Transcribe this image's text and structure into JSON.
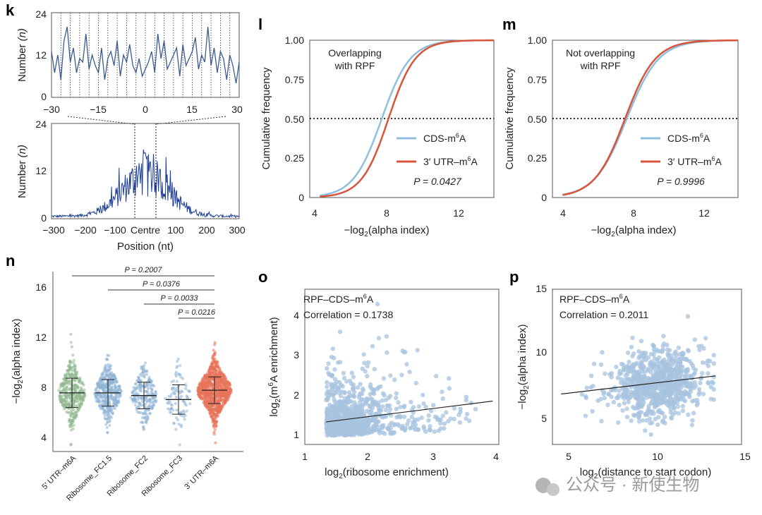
{
  "panels": {
    "k": {
      "label": "k"
    },
    "l": {
      "label": "l"
    },
    "m": {
      "label": "m"
    },
    "n": {
      "label": "n"
    },
    "o": {
      "label": "o"
    },
    "p": {
      "label": "p"
    }
  },
  "watermark": "公众号 · 新使生物",
  "chart_data": [
    {
      "panel": "k-top",
      "type": "line",
      "ylabel_main": "Number",
      "ylabel_unit": "(n)",
      "xlim": [
        -30,
        30
      ],
      "ylim": [
        0,
        24
      ],
      "xticks": [
        "−30",
        "−15",
        "0",
        "15",
        "30"
      ],
      "yticks": [
        "0",
        "12",
        "24"
      ],
      "color": "#3b5a8f",
      "x": [
        -30,
        -29,
        -28,
        -27,
        -26,
        -25,
        -24,
        -23,
        -22,
        -21,
        -20,
        -19,
        -18,
        -17,
        -16,
        -15,
        -14,
        -13,
        -12,
        -11,
        -10,
        -9,
        -8,
        -7,
        -6,
        -5,
        -4,
        -3,
        -2,
        -1,
        0,
        1,
        2,
        3,
        4,
        5,
        6,
        7,
        8,
        9,
        10,
        11,
        12,
        13,
        14,
        15,
        16,
        17,
        18,
        19,
        20,
        21,
        22,
        23,
        24,
        25,
        26,
        27,
        28,
        29,
        30
      ],
      "values": [
        13,
        7,
        12,
        5,
        16,
        20,
        10,
        14,
        7,
        11,
        10,
        18,
        8,
        12,
        9,
        7,
        14,
        5,
        11,
        13,
        9,
        16,
        6,
        12,
        10,
        15,
        9,
        7,
        11,
        6,
        8,
        10,
        13,
        7,
        18,
        11,
        16,
        8,
        10,
        12,
        14,
        6,
        15,
        9,
        11,
        13,
        17,
        8,
        12,
        10,
        20,
        9,
        14,
        7,
        13,
        11,
        5,
        12,
        9,
        4,
        10
      ]
    },
    {
      "panel": "k-bottom",
      "type": "line",
      "xlabel": "Position (nt)",
      "ylabel_main": "Number",
      "ylabel_unit": "(n)",
      "xlim": [
        -300,
        300
      ],
      "ylim": [
        0,
        24
      ],
      "xticks": [
        "−300",
        "−200",
        "−100",
        "Centre",
        "100",
        "200",
        "300"
      ],
      "yticks": [
        "0",
        "12",
        "24"
      ],
      "color": "#1f3f94",
      "x_step": 2,
      "peak_y": 19,
      "peak_x": 0
    },
    {
      "panel": "l",
      "type": "line",
      "xlabel_main": "−log",
      "xlabel_sub": "2",
      "xlabel_rest": "(alpha index)",
      "ylabel": "Cumulative frequency",
      "xlim": [
        3.5,
        14.5
      ],
      "ylim": [
        0,
        1
      ],
      "xticks": [
        "4",
        "8",
        "12"
      ],
      "yticks": [
        "0",
        "0.25",
        "0.50",
        "0.75",
        "1.00"
      ],
      "hline": 0.5,
      "annotation_line1": "Overlapping",
      "annotation_line2": "with RPF",
      "pvalue_text": "P = 0.0427",
      "series": [
        {
          "name_main": "CDS-m",
          "name_sup": "6",
          "name_rest": "A",
          "color": "#8fbfdf",
          "median": 7.8,
          "scale": 0.85
        },
        {
          "name_main": "3′ UTR–m",
          "name_sup": "6",
          "name_rest": "A",
          "color": "#d9553a",
          "median": 8.2,
          "scale": 0.8
        }
      ]
    },
    {
      "panel": "m",
      "type": "line",
      "xlabel_main": "−log",
      "xlabel_sub": "2",
      "xlabel_rest": "(alpha index)",
      "ylabel": "Cumulative frequency",
      "xlim": [
        3.5,
        14.5
      ],
      "ylim": [
        0,
        1
      ],
      "xticks": [
        "4",
        "8",
        "12"
      ],
      "yticks": [
        "0",
        "0.25",
        "0.50",
        "0.75",
        "1.00"
      ],
      "hline": 0.5,
      "annotation_line1": "Not overlapping",
      "annotation_line2": "with RPF",
      "pvalue_text": "P = 0.9996",
      "series": [
        {
          "name_main": "CDS-m",
          "name_sup": "6",
          "name_rest": "A",
          "color": "#8fbfdf",
          "median": 7.9,
          "scale": 0.95
        },
        {
          "name_main": "3′ UTR–m",
          "name_sup": "6",
          "name_rest": "A",
          "color": "#d9553a",
          "median": 7.8,
          "scale": 0.9
        }
      ]
    },
    {
      "panel": "n",
      "type": "scatter",
      "ylabel_main": "−log",
      "ylabel_sub": "2",
      "ylabel_rest": "(alpha index)",
      "ylim": [
        3.5,
        17
      ],
      "yticks": [
        "4",
        "8",
        "12",
        "16"
      ],
      "categories": [
        "5′ UTR–m6A",
        "Ribosome_FC1.5",
        "Ribosome_FC2",
        "Ribosome_FC3",
        "3′ UTR–m6A"
      ],
      "colors": [
        "#8fb88f",
        "#8fb4d6",
        "#8fb4d6",
        "#8fb4d6",
        "#e8735a"
      ],
      "means": [
        7.9,
        7.9,
        7.7,
        7.4,
        8.1
      ],
      "sd": [
        1.1,
        1.0,
        1.0,
        1.1,
        1.0
      ],
      "comparisons": [
        {
          "from": 0,
          "to": 4,
          "label": "P = 0.2007"
        },
        {
          "from": 1,
          "to": 4,
          "label": "P = 0.0376"
        },
        {
          "from": 2,
          "to": 4,
          "label": "P = 0.0033"
        },
        {
          "from": 3,
          "to": 4,
          "label": "P = 0.0216"
        }
      ]
    },
    {
      "panel": "o",
      "type": "scatter",
      "xlabel_main": "log",
      "xlabel_sub": "2",
      "xlabel_rest": "(ribosome enrichment)",
      "ylabel_pre": "log",
      "ylabel_sub": "2",
      "ylabel_mid": "(m",
      "ylabel_sup": "6",
      "ylabel_rest": "A enrichment)",
      "xlim": [
        0.85,
        4.05
      ],
      "ylim": [
        0.85,
        4.5
      ],
      "xticks": [
        "1",
        "2",
        "3",
        "4"
      ],
      "yticks": [
        "1",
        "2",
        "3",
        "4"
      ],
      "annotation_line1_main": "RPF–CDS–m",
      "annotation_line1_sup": "6",
      "annotation_line1_rest": "A",
      "annotation_line2": "Correlation = 0.1738",
      "fit": {
        "x": [
          1.2,
          3.95
        ],
        "y": [
          1.38,
          1.87
        ]
      },
      "color": "#a7c3df"
    },
    {
      "panel": "p",
      "type": "scatter",
      "xlabel_main": "log",
      "xlabel_sub": "2",
      "xlabel_rest": "(distance to start codon)",
      "ylabel_main": "−log",
      "ylabel_sub": "2",
      "ylabel_rest": "(alpha index)",
      "xlim": [
        4.3,
        15.2
      ],
      "ylim": [
        3.3,
        15.3
      ],
      "xticks": [
        "5",
        "10",
        "15"
      ],
      "yticks": [
        "5",
        "10",
        "15"
      ],
      "annotation_line1_main": "RPF–CDS–m",
      "annotation_line1_sup": "6",
      "annotation_line1_rest": "A",
      "annotation_line2": "Correlation = 0.2011",
      "fit": {
        "x": [
          4.8,
          13.7
        ],
        "y": [
          7.2,
          8.6
        ]
      },
      "color": "#a7c3df"
    }
  ]
}
